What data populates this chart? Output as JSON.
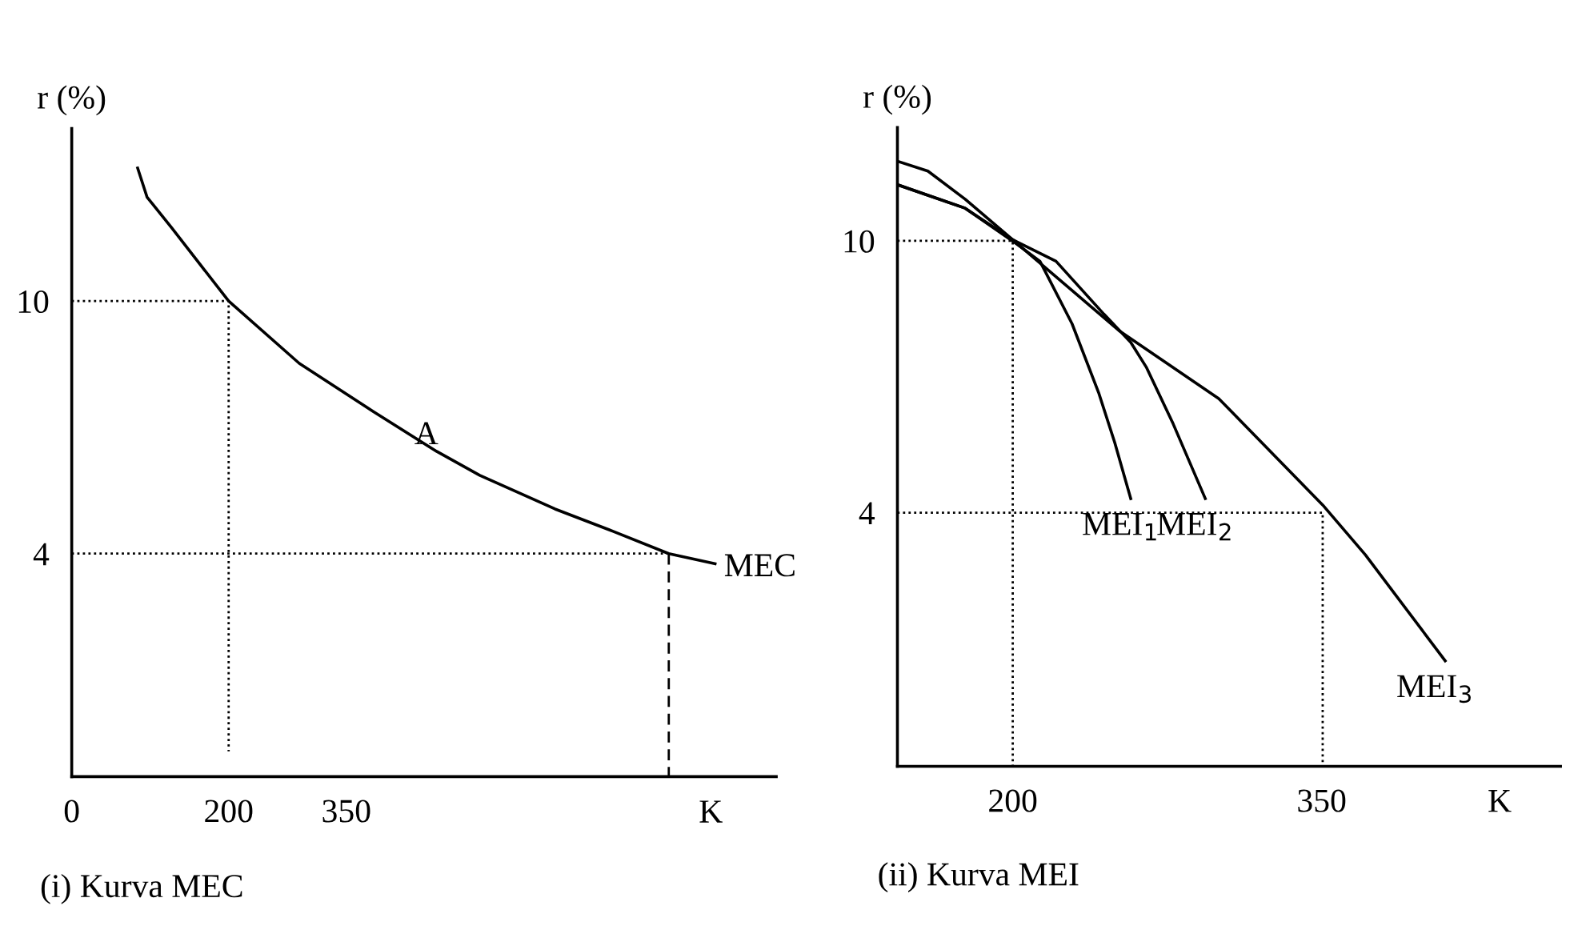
{
  "chart_data": [
    {
      "type": "line",
      "title": "(i) Kurva MEC",
      "ylabel": "r (%)",
      "xlabel": "K",
      "xlim": [
        0,
        898
      ],
      "ylim": [
        -1.3,
        14.1
      ],
      "xticks": [
        0,
        200,
        350
      ],
      "yticks": [
        4,
        10
      ],
      "grid": false,
      "legend": false,
      "marker": "none",
      "series": [
        {
          "name": "MEC",
          "color": "#000000",
          "line_style": "solid",
          "x": [
            84,
            96,
            127,
            200,
            290,
            384,
            465,
            520,
            616,
            690,
            761,
            820
          ],
          "values": [
            13.16,
            12.47,
            11.75,
            10,
            8.52,
            7.38,
            6.43,
            5.86,
            5.06,
            4.53,
            4,
            3.76
          ]
        },
        {
          "color": "#000000",
          "line_style": "dotted",
          "x": [
            0,
            200,
            200
          ],
          "values": [
            10,
            10,
            -0.7
          ]
        },
        {
          "color": "#000000",
          "line_style": "dotted",
          "x": [
            0,
            761
          ],
          "values": [
            4,
            4
          ]
        },
        {
          "color": "#000000",
          "line_style": "dashed",
          "x": [
            761,
            761
          ],
          "values": [
            4,
            -1.3
          ]
        }
      ],
      "annotations": [
        {
          "text": "A",
          "x": 465,
          "y": 6.43
        }
      ]
    },
    {
      "type": "line",
      "title": "(ii) Kurva MEI",
      "ylabel": "r (%)",
      "xlabel": "K",
      "xlim": [
        144,
        466
      ],
      "ylim": [
        -1.6,
        12.5
      ],
      "xticks": [
        200,
        350
      ],
      "yticks": [
        4,
        10
      ],
      "grid": false,
      "legend": false,
      "marker": "none",
      "series": [
        {
          "name": "MEI$_{1}$",
          "color": "#000000",
          "line_style": "solid",
          "x": [
            144.6,
            176.9,
            199.8,
            213.2,
            228.8,
            241.7,
            249.5,
            257.3
          ],
          "values": [
            11.23,
            10.72,
            10.0,
            9.55,
            8.17,
            6.65,
            5.55,
            4.31
          ]
        },
        {
          "name": "MEI$_{2}$",
          "color": "#000000",
          "line_style": "solid",
          "x": [
            144.6,
            158.8,
            176.9,
            199.8,
            221,
            244.3,
            257.3,
            265,
            277.9,
            293.5
          ],
          "values": [
            11.75,
            11.54,
            10.92,
            10.03,
            9.55,
            8.38,
            7.76,
            7.2,
            5.96,
            4.31
          ]
        },
        {
          "name": "MEI$_{3}$",
          "color": "#000000",
          "line_style": "solid",
          "x": [
            144.6,
            176.9,
            199.8,
            252.1,
            300,
            350.5,
            371.2,
            410
          ],
          "values": [
            11.23,
            10.72,
            10.03,
            8.0,
            6.52,
            4.17,
            3.07,
            0.73
          ]
        },
        {
          "color": "#000000",
          "line_style": "dotted",
          "x": [
            144,
            200,
            200
          ],
          "values": [
            10,
            10,
            -1.6
          ]
        },
        {
          "color": "#000000",
          "line_style": "dotted",
          "x": [
            144,
            350.5,
            350.5
          ],
          "values": [
            4,
            4,
            -1.6
          ]
        }
      ]
    }
  ]
}
